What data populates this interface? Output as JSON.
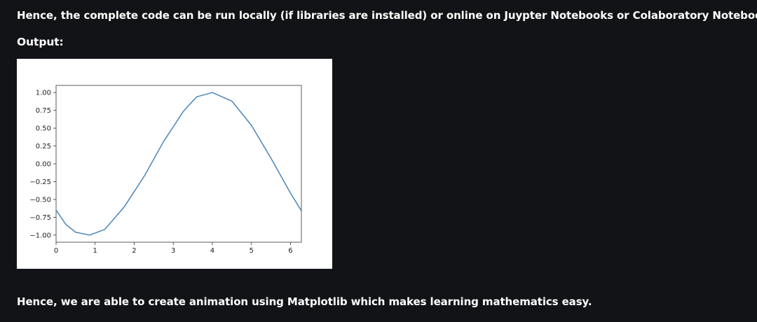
{
  "article": {
    "intro_text": "Hence, the complete code can be run locally (if libraries are installed) or online on Juypter Notebooks or Colaboratory Notebooks.",
    "output_label": "Output:",
    "outro_text": "Hence, we are able to create animation using Matplotlib which makes learning mathematics easy."
  },
  "colors": {
    "background": "#121316",
    "text": "#ffffff",
    "line": "#4a86b8"
  },
  "chart_data": {
    "type": "line",
    "title": "",
    "xlabel": "",
    "ylabel": "",
    "xlim": [
      0,
      6.28
    ],
    "ylim": [
      -1.1,
      1.1
    ],
    "xticks": [
      "0",
      "1",
      "2",
      "3",
      "4",
      "5",
      "6"
    ],
    "yticks": [
      "1.00",
      "0.75",
      "0.50",
      "0.25",
      "0.00",
      "−0.25",
      "−0.50",
      "−0.75",
      "−1.00"
    ],
    "grid": false,
    "series": [
      {
        "function": "sin(x - 2.43)",
        "x": [
          0,
          0.25,
          0.5,
          0.86,
          1.25,
          1.75,
          2.25,
          2.75,
          3.25,
          3.6,
          4.0,
          4.5,
          5.0,
          5.5,
          6.0,
          6.28
        ],
        "y": [
          -0.65,
          -0.85,
          -0.96,
          -1.0,
          -0.92,
          -0.6,
          -0.18,
          0.31,
          0.73,
          0.94,
          1.0,
          0.88,
          0.54,
          0.08,
          -0.41,
          -0.66
        ]
      }
    ]
  }
}
